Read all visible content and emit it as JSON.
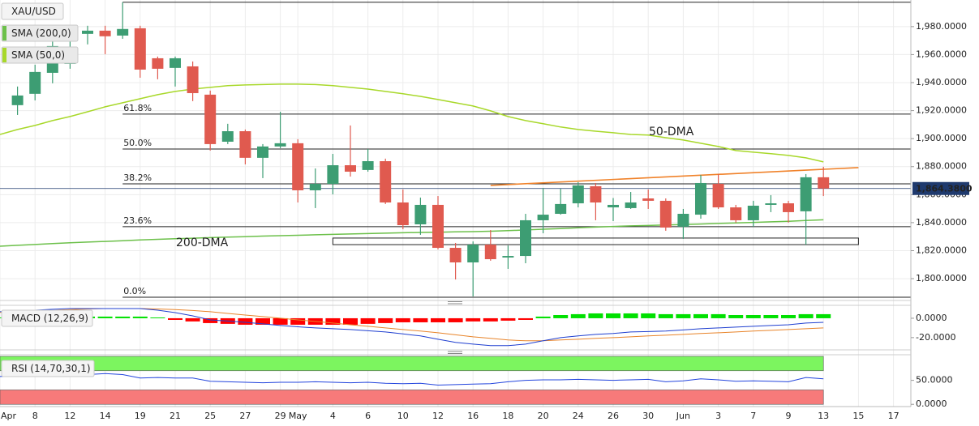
{
  "chart_data": [
    {
      "type": "candlestick",
      "title": "XAU/USD",
      "categories": [
        "Apr",
        null,
        "8",
        null,
        "12",
        null,
        "14",
        null,
        "19",
        null,
        "21",
        null,
        "25",
        null,
        "27",
        null,
        "29",
        "May",
        null,
        "4",
        null,
        "6",
        null,
        "10",
        null,
        "12",
        null,
        "16",
        null,
        "18",
        null,
        "20",
        null,
        "24",
        null,
        "26",
        null,
        "30",
        null,
        "Jun",
        null,
        "3",
        null,
        "7",
        null,
        "9",
        null,
        "13",
        null,
        "15",
        null,
        "17"
      ],
      "open": [
        null,
        1923.9,
        1932.0,
        1947.0,
        1953.4,
        1974.8,
        1977.1,
        1973.6,
        1978.8,
        1957.4,
        1950.5,
        1951.6,
        1931.4,
        1897.8,
        1905.3,
        1886.3,
        1894.4,
        1896.7,
        1863.1,
        1867.7,
        1881.0,
        1877.6,
        1883.9,
        1854.4,
        1838.8,
        1852.7,
        1822.0,
        1811.6,
        1824.3,
        1815.1,
        1816.2,
        1841.7,
        1846.3,
        1853.8,
        1866.0,
        1850.9,
        1850.4,
        1857.3,
        1855.6,
        1837.1,
        1845.7,
        1867.7,
        1850.9,
        1841.7,
        1852.7,
        1853.8,
        1848.1,
        1872.4,
        null,
        null,
        null,
        null
      ],
      "high": [
        null,
        1937.2,
        1952.8,
        1970.2,
        1980.0,
        1980.6,
        1980.6,
        1997.4,
        1980.6,
        1958.6,
        1958.6,
        1955.1,
        1934.3,
        1910.6,
        1906.5,
        1896.1,
        1919.2,
        1899.6,
        1878.7,
        1889.1,
        1909.4,
        1892.6,
        1885.7,
        1863.7,
        1857.9,
        1859.0,
        1825.5,
        1826.6,
        1834.7,
        1823.7,
        1846.3,
        1864.8,
        1864.2,
        1868.9,
        1868.3,
        1857.6,
        1861.9,
        1863.7,
        1857.3,
        1849.8,
        1874.1,
        1874.7,
        1852.7,
        1855.6,
        1859.6,
        1855.6,
        1874.7,
        1879.9,
        null,
        null,
        null,
        null
      ],
      "low": [
        null,
        1916.9,
        1927.3,
        1939.5,
        1949.9,
        1967.3,
        1960.3,
        1971.3,
        1943.5,
        1942.4,
        1937.2,
        1926.8,
        1891.5,
        1896.1,
        1881.6,
        1871.8,
        1893.2,
        1854.4,
        1850.4,
        1860.2,
        1872.9,
        1876.4,
        1853.3,
        1835.3,
        1831.3,
        1820.9,
        1799.4,
        1787.3,
        1812.8,
        1807.0,
        1811.0,
        1832.4,
        1845.7,
        1850.9,
        1841.7,
        1841.1,
        1849.8,
        1849.8,
        1834.2,
        1828.4,
        1842.8,
        1849.8,
        1840.0,
        1837.1,
        1847.5,
        1840.0,
        1824.3,
        1859.0,
        null,
        null,
        null,
        null
      ],
      "close": [
        null,
        1930.8,
        1947.6,
        1966.1,
        1965.5,
        1977.1,
        1973.1,
        1978.3,
        1949.3,
        1949.9,
        1957.4,
        1932.5,
        1896.1,
        1905.3,
        1886.3,
        1894.4,
        1896.7,
        1863.1,
        1867.7,
        1881.0,
        1876.4,
        1883.9,
        1854.4,
        1838.2,
        1852.7,
        1822.0,
        1811.6,
        1824.3,
        1813.9,
        1816.2,
        1841.7,
        1845.7,
        1853.3,
        1866.6,
        1854.4,
        1852.7,
        1854.4,
        1855.6,
        1836.5,
        1846.3,
        1868.3,
        1850.9,
        1841.7,
        1852.1,
        1853.8,
        1847.5,
        1872.4,
        1864.38,
        null,
        null,
        null,
        null
      ],
      "up_color": "#3d9d73",
      "down_color": "#e05a4f",
      "ylim": [
        1785,
        1999
      ],
      "yticks": [
        {
          "value": 1800,
          "label": "1,800.0000"
        },
        {
          "value": 1820,
          "label": "1,820.0000"
        },
        {
          "value": 1840,
          "label": "1,840.0000"
        },
        {
          "value": 1860,
          "label": "1,860.0000"
        },
        {
          "value": 1880,
          "label": "1,880.0000"
        },
        {
          "value": 1900,
          "label": "1,900.0000"
        },
        {
          "value": 1920,
          "label": "1,920.0000"
        },
        {
          "value": 1940,
          "label": "1,940.0000"
        },
        {
          "value": 1960,
          "label": "1,960.0000"
        },
        {
          "value": 1980,
          "label": "1,980.0000"
        }
      ],
      "grid": true,
      "last_price": {
        "value": 1864.38,
        "label": "1,864.3800",
        "color": "#1f3a6e"
      },
      "series": [
        {
          "name": "SMA (200,0)",
          "color": "#6cc04a",
          "values": [
            1823.2,
            1823.8,
            1824.4,
            1825.0,
            1825.6,
            1826.1,
            1826.6,
            1827.1,
            1827.6,
            1828.1,
            1828.5,
            1828.9,
            1829.3,
            1829.7,
            1830.0,
            1830.4,
            1830.7,
            1831.0,
            1831.3,
            1831.6,
            1831.9,
            1832.2,
            1832.5,
            1832.8,
            1833.0,
            1833.2,
            1833.4,
            1833.6,
            1833.9,
            1834.3,
            1834.8,
            1835.3,
            1835.8,
            1836.3,
            1836.8,
            1837.3,
            1837.7,
            1838.0,
            1838.3,
            1838.6,
            1839.0,
            1839.4,
            1839.8,
            1840.2,
            1840.6,
            1841.0,
            1841.5,
            1842.0,
            null,
            null,
            null,
            null
          ]
        },
        {
          "name": "SMA (50,0)",
          "color": "#a8d82a",
          "values": [
            1903.0,
            1906.5,
            1909.4,
            1912.9,
            1915.8,
            1919.2,
            1922.7,
            1925.6,
            1928.5,
            1931.4,
            1933.7,
            1935.4,
            1936.6,
            1937.8,
            1938.3,
            1938.6,
            1938.9,
            1938.9,
            1938.6,
            1937.8,
            1936.6,
            1935.4,
            1933.7,
            1932.0,
            1930.2,
            1927.9,
            1925.6,
            1923.3,
            1919.8,
            1915.8,
            1912.9,
            1910.6,
            1908.3,
            1906.5,
            1905.3,
            1904.2,
            1903.0,
            1902.5,
            1900.7,
            1899.0,
            1896.7,
            1894.4,
            1891.5,
            1890.3,
            1889.2,
            1888.0,
            1886.3,
            1883.4,
            null,
            null,
            null,
            null
          ]
        }
      ],
      "fib_levels": [
        {
          "value": 1997.4,
          "label": null
        },
        {
          "value": 1917.5,
          "label": "61.8%"
        },
        {
          "value": 1892.6,
          "label": "50.0%"
        },
        {
          "value": 1867.7,
          "label": "38.2%"
        },
        {
          "value": 1837.1,
          "label": "23.6%"
        },
        {
          "value": 1786.7,
          "label": "0.0%"
        }
      ],
      "support_zone": {
        "x": [
          19,
          49
        ],
        "values": [
          1829.0,
          1824.3
        ]
      },
      "trendline": {
        "x": [
          28,
          49
        ],
        "values": [
          1866.6,
          1879.3
        ],
        "color": "#f0822a"
      },
      "annotations": [
        {
          "text": "50-DMA",
          "color": "#9acd1a"
        },
        {
          "text": "200-DMA",
          "color": "#5db53a"
        }
      ]
    },
    {
      "type": "macd",
      "title": "MACD (12,26,9)",
      "histogram": {
        "up_color": "#00e000",
        "down_color": "#ff0000",
        "values": [
          0.8,
          0.8,
          0.8,
          0.8,
          0.8,
          1.7,
          1.7,
          1.7,
          1.7,
          0.8,
          -1.7,
          -3.3,
          -5.0,
          -5.8,
          -6.7,
          -6.7,
          -6.7,
          -6.7,
          -6.7,
          -6.7,
          -6.7,
          -5.8,
          -5.0,
          -4.2,
          -4.2,
          -4.2,
          -4.2,
          -3.3,
          -3.3,
          -2.5,
          -1.7,
          1.7,
          3.3,
          4.2,
          5.0,
          5.0,
          5.0,
          5.0,
          4.2,
          4.2,
          4.2,
          4.2,
          3.3,
          3.3,
          3.3,
          3.3,
          4.2,
          4.2,
          null,
          null,
          null,
          null
        ]
      },
      "macd_line": {
        "color": "#1f3fd0",
        "values": [
          6.7,
          7.5,
          8.3,
          9.2,
          10.0,
          10.0,
          10.0,
          10.0,
          10.0,
          8.3,
          5.8,
          2.5,
          -1.7,
          -2.9,
          -4.2,
          -5.8,
          -7.5,
          -8.8,
          -10.0,
          -10.8,
          -11.7,
          -12.9,
          -14.2,
          -16.2,
          -18.3,
          -21.7,
          -25.0,
          -26.7,
          -28.3,
          -28.3,
          -26.7,
          -23.3,
          -20.0,
          -18.3,
          -16.7,
          -15.8,
          -14.2,
          -13.8,
          -13.3,
          -12.1,
          -10.8,
          -10.0,
          -9.2,
          -8.3,
          -7.5,
          -6.7,
          -5.0,
          -4.2,
          null,
          null,
          null,
          null
        ]
      },
      "signal_line": {
        "color": "#e8842a",
        "values": [
          6.0,
          6.7,
          7.5,
          8.3,
          9.0,
          9.6,
          10.0,
          10.0,
          10.0,
          9.6,
          9.0,
          8.0,
          6.7,
          5.0,
          3.3,
          1.7,
          0.0,
          -1.7,
          -3.3,
          -5.0,
          -6.7,
          -8.3,
          -10.0,
          -11.7,
          -13.3,
          -15.0,
          -17.1,
          -19.2,
          -20.8,
          -22.5,
          -23.3,
          -23.3,
          -22.5,
          -21.7,
          -20.8,
          -20.0,
          -19.2,
          -18.3,
          -17.5,
          -16.7,
          -15.8,
          -15.0,
          -14.2,
          -13.3,
          -12.5,
          -11.7,
          -10.8,
          -10.0,
          null,
          null,
          null,
          null
        ]
      },
      "ylim": [
        -31,
        12.5
      ],
      "yticks": [
        {
          "value": -20,
          "label": "-20.0000"
        },
        {
          "value": 0,
          "label": "0.0000"
        }
      ]
    },
    {
      "type": "rsi",
      "title": "RSI (14,70,30,1)",
      "color": "#2244dd",
      "values": [
        58,
        59,
        60,
        61,
        62,
        62,
        64,
        62,
        55,
        56,
        55,
        55,
        48,
        47,
        46,
        45,
        46,
        46,
        47,
        46,
        45,
        46,
        44,
        43,
        44,
        40,
        41,
        42,
        43,
        47,
        50,
        51,
        51,
        52,
        51,
        50,
        51,
        52,
        47,
        49,
        53,
        51,
        48,
        49,
        48,
        47,
        56,
        53,
        null,
        null,
        null,
        null
      ],
      "bands": [
        {
          "from": 70,
          "to": 100,
          "color": "#7cf55f"
        },
        {
          "from": 0,
          "to": 30,
          "color": "#f77a7a"
        }
      ],
      "ylim": [
        -3,
        100
      ],
      "yticks": [
        {
          "value": 0,
          "label": "0.0000"
        },
        {
          "value": 50,
          "label": "50.0000"
        }
      ]
    }
  ]
}
